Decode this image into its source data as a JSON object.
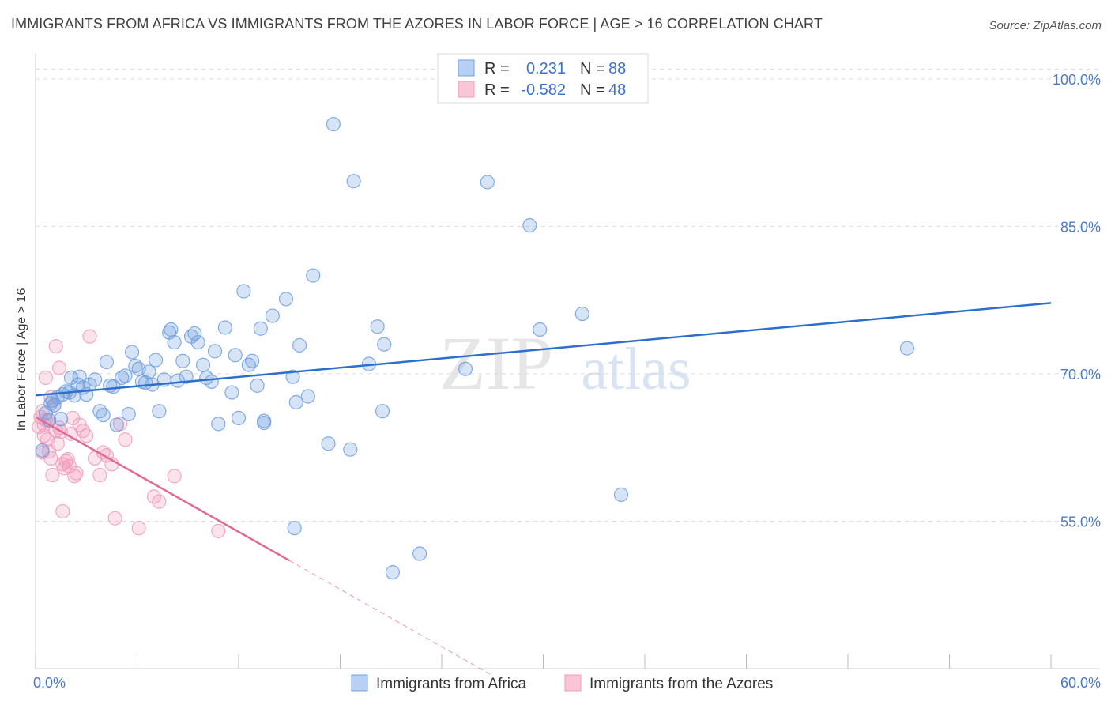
{
  "title": "IMMIGRANTS FROM AFRICA VS IMMIGRANTS FROM THE AZORES IN LABOR FORCE | AGE > 16 CORRELATION CHART",
  "source": "Source: ZipAtlas.com",
  "watermark": {
    "zip": "ZIP",
    "atlas": "atlas"
  },
  "chart_data": {
    "type": "scatter",
    "xlabel": "",
    "ylabel": "In Labor Force | Age > 16",
    "xlim": [
      0,
      60
    ],
    "ylim": [
      40,
      102
    ],
    "x_tick_labels": [
      {
        "value": 0,
        "label": "0.0%"
      },
      {
        "value": 60,
        "label": "60.0%"
      }
    ],
    "y_tick_labels": [
      {
        "value": 100,
        "label": "100.0%"
      },
      {
        "value": 85,
        "label": "85.0%"
      },
      {
        "value": 70,
        "label": "70.0%"
      },
      {
        "value": 55,
        "label": "55.0%"
      }
    ],
    "grid": true,
    "legend_position": "top-center",
    "series": [
      {
        "name": "Immigrants from Africa",
        "color": "#6f9fe0",
        "line_color": "#2c6fcc",
        "R": "0.231",
        "N": "88",
        "trend": {
          "x": [
            0,
            60
          ],
          "y": [
            67.8,
            77.2
          ]
        },
        "points": [
          [
            0.4,
            62.2
          ],
          [
            0.6,
            66
          ],
          [
            0.8,
            65.3
          ],
          [
            0.9,
            67
          ],
          [
            1.0,
            67.3
          ],
          [
            1.1,
            66.8
          ],
          [
            1.3,
            67.6
          ],
          [
            1.5,
            65.4
          ],
          [
            1.6,
            67.9
          ],
          [
            1.8,
            68.2
          ],
          [
            2.0,
            68.1
          ],
          [
            2.1,
            69.6
          ],
          [
            2.3,
            67.8
          ],
          [
            2.5,
            68.9
          ],
          [
            2.6,
            69.7
          ],
          [
            2.8,
            68.6
          ],
          [
            3.0,
            67.9
          ],
          [
            3.2,
            68.9
          ],
          [
            3.5,
            69.4
          ],
          [
            3.8,
            66.2
          ],
          [
            4.0,
            65.8
          ],
          [
            4.2,
            71.2
          ],
          [
            4.4,
            68.8
          ],
          [
            4.6,
            68.7
          ],
          [
            4.8,
            64.8
          ],
          [
            5.1,
            69.6
          ],
          [
            5.3,
            69.8
          ],
          [
            5.5,
            65.9
          ],
          [
            5.7,
            72.2
          ],
          [
            5.9,
            70.8
          ],
          [
            6.1,
            70.5
          ],
          [
            6.3,
            69.2
          ],
          [
            6.5,
            69.1
          ],
          [
            6.7,
            70.2
          ],
          [
            6.9,
            68.9
          ],
          [
            7.1,
            71.4
          ],
          [
            7.3,
            66.2
          ],
          [
            7.6,
            69.4
          ],
          [
            7.9,
            74.2
          ],
          [
            8.0,
            74.5
          ],
          [
            8.2,
            73.2
          ],
          [
            8.4,
            69.3
          ],
          [
            8.7,
            71.3
          ],
          [
            8.9,
            69.7
          ],
          [
            9.2,
            73.8
          ],
          [
            9.4,
            74.1
          ],
          [
            9.6,
            73.2
          ],
          [
            9.9,
            70.9
          ],
          [
            10.1,
            69.6
          ],
          [
            10.4,
            69.2
          ],
          [
            10.6,
            72.3
          ],
          [
            10.8,
            64.9
          ],
          [
            11.2,
            74.7
          ],
          [
            11.6,
            68.1
          ],
          [
            11.8,
            71.9
          ],
          [
            12.0,
            65.5
          ],
          [
            12.3,
            78.4
          ],
          [
            12.6,
            70.9
          ],
          [
            12.8,
            71.3
          ],
          [
            13.1,
            68.8
          ],
          [
            13.3,
            74.6
          ],
          [
            13.5,
            65.2
          ],
          [
            13.5,
            65.0
          ],
          [
            14.0,
            75.9
          ],
          [
            14.8,
            77.6
          ],
          [
            15.2,
            69.7
          ],
          [
            15.4,
            67.1
          ],
          [
            15.6,
            72.9
          ],
          [
            16.1,
            67.7
          ],
          [
            16.4,
            80.0
          ],
          [
            17.3,
            62.9
          ],
          [
            17.6,
            95.4
          ],
          [
            18.6,
            62.3
          ],
          [
            18.8,
            89.6
          ],
          [
            19.7,
            71.0
          ],
          [
            20.2,
            74.8
          ],
          [
            20.5,
            66.2
          ],
          [
            20.6,
            73.0
          ],
          [
            21.1,
            49.8
          ],
          [
            22.7,
            51.7
          ],
          [
            25.4,
            70.5
          ],
          [
            26.7,
            89.5
          ],
          [
            29.2,
            85.1
          ],
          [
            29.8,
            74.5
          ],
          [
            32.3,
            76.1
          ],
          [
            34.6,
            57.7
          ],
          [
            51.5,
            72.6
          ],
          [
            15.3,
            54.3
          ]
        ]
      },
      {
        "name": "Immigrants from the Azores",
        "color": "#f29abb",
        "line_color": "#e06a96",
        "R": "-0.582",
        "N": "48",
        "trend": {
          "x": [
            0,
            15
          ],
          "y": [
            65.6,
            51.0
          ]
        },
        "trend_dashed": {
          "x": [
            15,
            27
          ],
          "y": [
            51.0,
            39.3
          ]
        },
        "points": [
          [
            0.2,
            64.6
          ],
          [
            0.3,
            65.6
          ],
          [
            0.4,
            66.2
          ],
          [
            0.5,
            63.7
          ],
          [
            0.5,
            64.8
          ],
          [
            0.6,
            65.3
          ],
          [
            0.7,
            63.3
          ],
          [
            0.7,
            65.2
          ],
          [
            0.8,
            62.1
          ],
          [
            0.9,
            61.4
          ],
          [
            1.0,
            59.7
          ],
          [
            1.1,
            66.8
          ],
          [
            1.2,
            64.2
          ],
          [
            1.3,
            62.9
          ],
          [
            1.4,
            64.5
          ],
          [
            1.5,
            64.1
          ],
          [
            1.6,
            60.8
          ],
          [
            1.7,
            60.4
          ],
          [
            1.8,
            61.1
          ],
          [
            1.9,
            61.3
          ],
          [
            2.0,
            60.6
          ],
          [
            2.1,
            63.9
          ],
          [
            2.2,
            65.5
          ],
          [
            2.3,
            59.6
          ],
          [
            2.4,
            59.9
          ],
          [
            2.6,
            64.8
          ],
          [
            2.8,
            64.2
          ],
          [
            3.0,
            63.7
          ],
          [
            3.2,
            73.8
          ],
          [
            3.5,
            61.4
          ],
          [
            3.8,
            59.7
          ],
          [
            4.0,
            62.0
          ],
          [
            4.2,
            61.7
          ],
          [
            4.5,
            60.8
          ],
          [
            4.7,
            55.3
          ],
          [
            5.0,
            64.9
          ],
          [
            5.3,
            63.3
          ],
          [
            6.1,
            54.3
          ],
          [
            7.0,
            57.5
          ],
          [
            7.3,
            57.0
          ],
          [
            0.6,
            69.6
          ],
          [
            0.9,
            67.6
          ],
          [
            1.2,
            72.8
          ],
          [
            1.4,
            70.6
          ],
          [
            1.6,
            56.0
          ],
          [
            8.2,
            59.6
          ],
          [
            10.8,
            54.0
          ],
          [
            0.4,
            62.0
          ]
        ]
      }
    ]
  }
}
